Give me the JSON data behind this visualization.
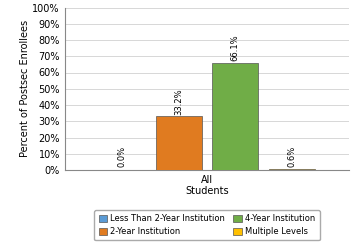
{
  "group_label": "All\nStudents",
  "categories": [
    "Less Than 2-Year Institution",
    "2-Year Institution",
    "4-Year Institution",
    "Multiple Levels"
  ],
  "values": [
    0.0,
    33.2,
    66.1,
    0.6
  ],
  "bar_colors": [
    "#5b9bd5",
    "#e07b20",
    "#70ad47",
    "#ffc000"
  ],
  "bar_edge_color": "#555555",
  "ylabel": "Percent of Postsec Enrollees",
  "xlabel": "All\nStudents",
  "ylim": [
    0,
    100
  ],
  "yticks": [
    0,
    10,
    20,
    30,
    40,
    50,
    60,
    70,
    80,
    90,
    100
  ],
  "ytick_labels": [
    "0%",
    "10%",
    "20%",
    "30%",
    "40%",
    "50%",
    "60%",
    "70%",
    "80%",
    "90%",
    "100%"
  ],
  "bar_width": 0.15,
  "bar_positions": [
    -0.275,
    -0.09,
    0.09,
    0.275
  ],
  "value_labels": [
    "0.0%",
    "33.2%",
    "66.1%",
    "0.6%"
  ],
  "legend_entries": [
    "Less Than 2-Year Institution",
    "2-Year Institution",
    "4-Year Institution",
    "Multiple Levels"
  ],
  "legend_colors": [
    "#5b9bd5",
    "#e07b20",
    "#70ad47",
    "#ffc000"
  ],
  "background_color": "#ffffff",
  "grid_color": "#c8c8c8",
  "font_size": 7,
  "label_font_size": 6,
  "ylabel_fontsize": 7,
  "legend_fontsize": 6
}
